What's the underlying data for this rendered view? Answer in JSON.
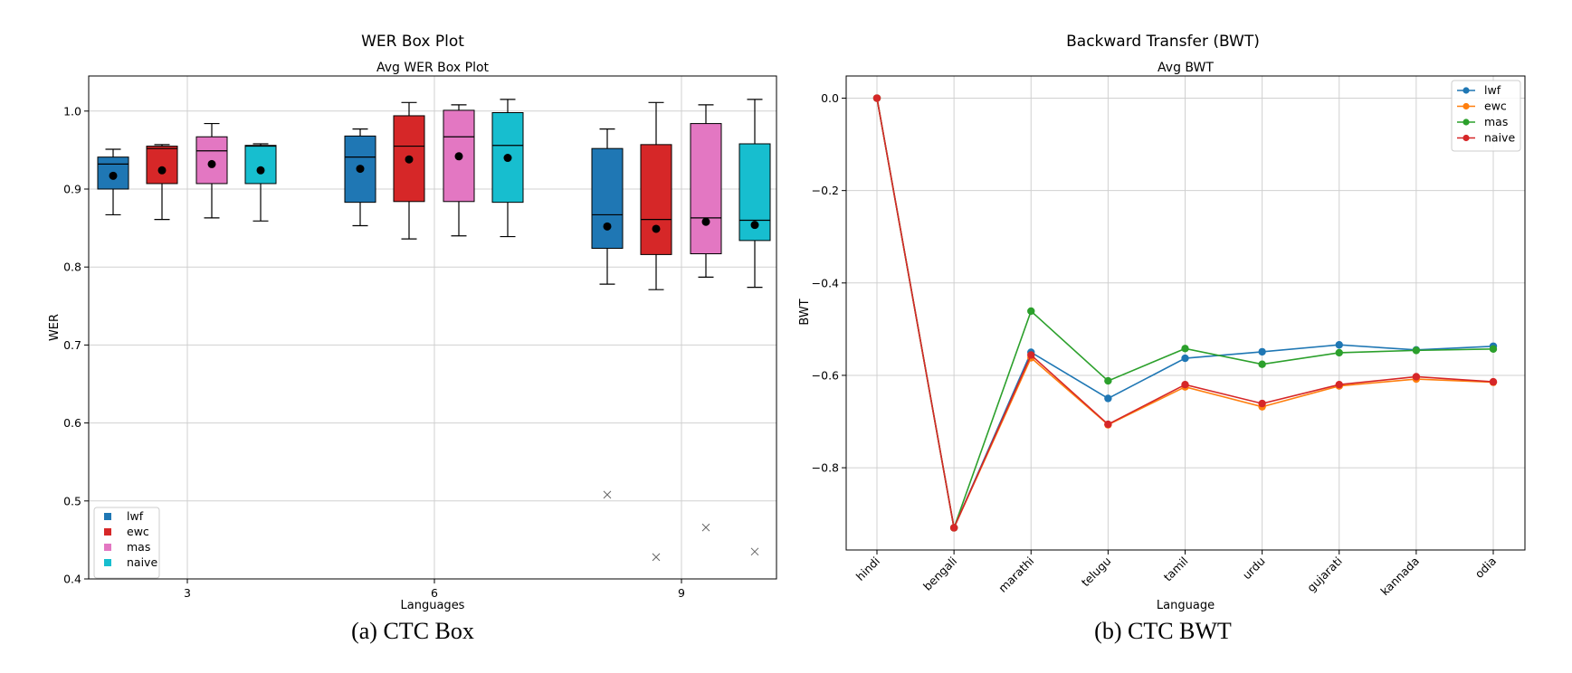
{
  "figure": {
    "caption_a": "(a) CTC Box",
    "caption_b": "(b) CTC BWT"
  },
  "chart_data": [
    {
      "type": "box",
      "suptitle": "WER Box Plot",
      "title": "Avg WER Box Plot",
      "xlabel": "Languages",
      "ylabel": "WER",
      "ylim": [
        0.4,
        1.045
      ],
      "yticks": [
        "0.4",
        "0.5",
        "0.6",
        "0.7",
        "0.8",
        "0.9",
        "1.0"
      ],
      "categories": [
        "3",
        "6",
        "9"
      ],
      "grid": true,
      "legend_position": "lower-left",
      "series": [
        {
          "name": "lwf",
          "color": "#1f77b4",
          "boxes": [
            {
              "whislo": 0.867,
              "q1": 0.9,
              "med": 0.932,
              "q3": 0.941,
              "whishi": 0.951,
              "mean": 0.917,
              "fliers": []
            },
            {
              "whislo": 0.853,
              "q1": 0.883,
              "med": 0.941,
              "q3": 0.968,
              "whishi": 0.977,
              "mean": 0.926,
              "fliers": []
            },
            {
              "whislo": 0.778,
              "q1": 0.824,
              "med": 0.867,
              "q3": 0.952,
              "whishi": 0.977,
              "mean": 0.852,
              "fliers": [
                0.508
              ]
            }
          ]
        },
        {
          "name": "ewc",
          "color": "#d62728",
          "boxes": [
            {
              "whislo": 0.861,
              "q1": 0.907,
              "med": 0.952,
              "q3": 0.955,
              "whishi": 0.957,
              "mean": 0.924,
              "fliers": []
            },
            {
              "whislo": 0.836,
              "q1": 0.884,
              "med": 0.955,
              "q3": 0.994,
              "whishi": 1.011,
              "mean": 0.938,
              "fliers": []
            },
            {
              "whislo": 0.771,
              "q1": 0.816,
              "med": 0.861,
              "q3": 0.957,
              "whishi": 1.011,
              "mean": 0.849,
              "fliers": [
                0.428
              ]
            }
          ]
        },
        {
          "name": "mas",
          "color": "#e377c2",
          "boxes": [
            {
              "whislo": 0.863,
              "q1": 0.907,
              "med": 0.949,
              "q3": 0.967,
              "whishi": 0.984,
              "mean": 0.932,
              "fliers": []
            },
            {
              "whislo": 0.84,
              "q1": 0.884,
              "med": 0.967,
              "q3": 1.001,
              "whishi": 1.008,
              "mean": 0.942,
              "fliers": []
            },
            {
              "whislo": 0.787,
              "q1": 0.817,
              "med": 0.863,
              "q3": 0.984,
              "whishi": 1.008,
              "mean": 0.858,
              "fliers": [
                0.466
              ]
            }
          ]
        },
        {
          "name": "naive",
          "color": "#17becf",
          "boxes": [
            {
              "whislo": 0.859,
              "q1": 0.907,
              "med": 0.955,
              "q3": 0.956,
              "whishi": 0.958,
              "mean": 0.924,
              "fliers": []
            },
            {
              "whislo": 0.839,
              "q1": 0.883,
              "med": 0.956,
              "q3": 0.998,
              "whishi": 1.015,
              "mean": 0.94,
              "fliers": []
            },
            {
              "whislo": 0.774,
              "q1": 0.834,
              "med": 0.86,
              "q3": 0.958,
              "whishi": 1.015,
              "mean": 0.854,
              "fliers": [
                0.435
              ]
            }
          ]
        }
      ]
    },
    {
      "type": "line",
      "suptitle": "Backward Transfer (BWT)",
      "title": "Avg BWT",
      "xlabel": "Language",
      "ylabel": "BWT",
      "ylim": [
        -0.978,
        0.048
      ],
      "yticks": [
        "0.0",
        "−0.2",
        "−0.4",
        "−0.6",
        "−0.8"
      ],
      "categories": [
        "hindi",
        "bengali",
        "marathi",
        "telugu",
        "tamil",
        "urdu",
        "gujarati",
        "kannada",
        "odia"
      ],
      "grid": true,
      "legend_position": "top-right",
      "series": [
        {
          "name": "lwf",
          "color": "#1f77b4",
          "values": [
            0.0,
            -0.93,
            -0.55,
            -0.65,
            -0.563,
            -0.549,
            -0.534,
            -0.545,
            -0.537
          ]
        },
        {
          "name": "ewc",
          "color": "#ff7f0e",
          "values": [
            0.0,
            -0.93,
            -0.562,
            -0.707,
            -0.625,
            -0.668,
            -0.623,
            -0.608,
            -0.615
          ]
        },
        {
          "name": "mas",
          "color": "#2ca02c",
          "values": [
            0.0,
            -0.93,
            -0.461,
            -0.612,
            -0.542,
            -0.576,
            -0.551,
            -0.546,
            -0.543
          ]
        },
        {
          "name": "naive",
          "color": "#d62728",
          "values": [
            0.0,
            -0.93,
            -0.556,
            -0.706,
            -0.62,
            -0.661,
            -0.62,
            -0.603,
            -0.614
          ]
        }
      ]
    }
  ]
}
